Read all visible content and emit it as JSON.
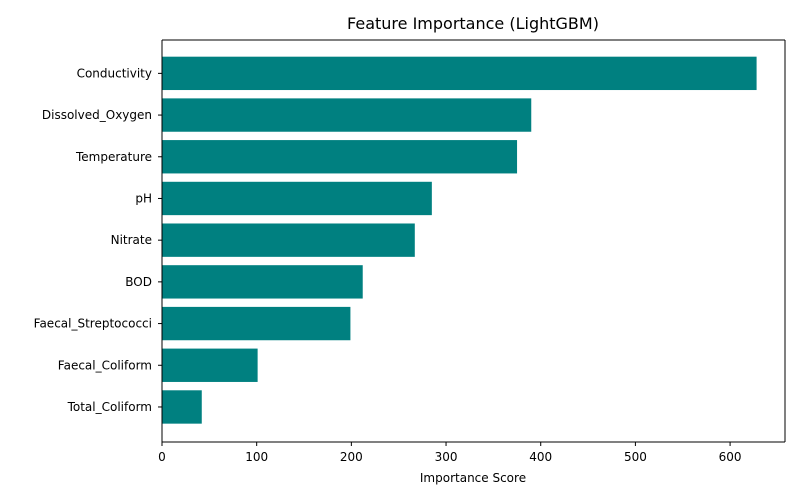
{
  "chart_data": {
    "type": "bar",
    "orientation": "horizontal",
    "title": "Feature Importance (LightGBM)",
    "xlabel": "Importance Score",
    "ylabel": "",
    "categories": [
      "Conductivity",
      "Dissolved_Oxygen",
      "Temperature",
      "pH",
      "Nitrate",
      "BOD",
      "Faecal_Streptococci",
      "Faecal_Coliform",
      "Total_Coliform"
    ],
    "values": [
      628,
      390,
      375,
      285,
      267,
      212,
      199,
      101,
      42
    ],
    "xlim": [
      0,
      658
    ],
    "xticks": [
      "0",
      "100",
      "200",
      "300",
      "400",
      "500",
      "600"
    ],
    "grid": false,
    "legend": "none",
    "bar_color": "#008080"
  }
}
